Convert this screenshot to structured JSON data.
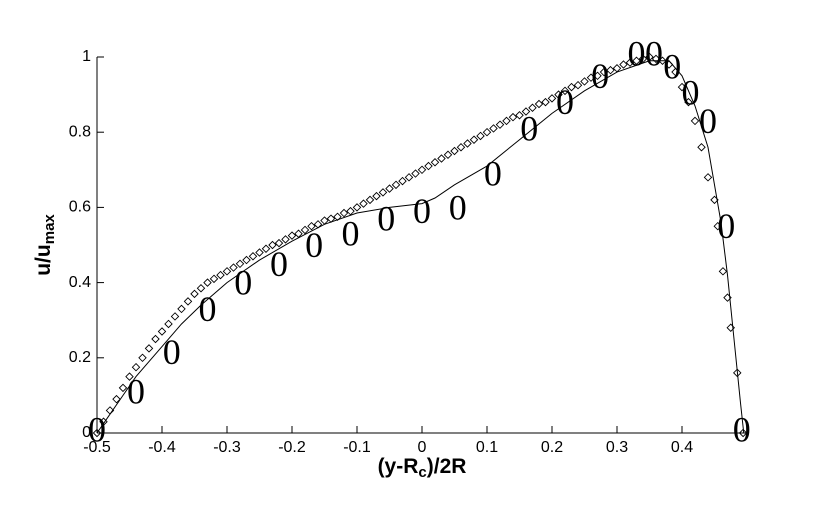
{
  "chart_data": {
    "type": "line",
    "xlabel": [
      "(y-R",
      "c",
      ")/2R"
    ],
    "ylabel": [
      "u/u",
      "max"
    ],
    "xlim": [
      -0.5,
      0.5
    ],
    "ylim": [
      0,
      1
    ],
    "xticks": [
      -0.5,
      -0.4,
      -0.3,
      -0.2,
      -0.1,
      0,
      0.1,
      0.2,
      0.3,
      0.4
    ],
    "yticks": [
      0,
      0.2,
      0.4,
      0.6,
      0.8,
      1
    ],
    "grid": false,
    "series": [
      {
        "mode": "line",
        "color": "#000000",
        "x": [
          -0.5,
          -0.48,
          -0.46,
          -0.44,
          -0.42,
          -0.4,
          -0.37,
          -0.34,
          -0.3,
          -0.25,
          -0.2,
          -0.15,
          -0.1,
          -0.05,
          0,
          0.02,
          0.05,
          0.1,
          0.15,
          0.2,
          0.25,
          0.3,
          0.35,
          0.38,
          0.4,
          0.42,
          0.44,
          0.46,
          0.47,
          0.48,
          0.49,
          0.495
        ],
        "values": [
          0,
          0.05,
          0.1,
          0.15,
          0.19,
          0.23,
          0.29,
          0.34,
          0.4,
          0.46,
          0.51,
          0.555,
          0.585,
          0.6,
          0.61,
          0.625,
          0.66,
          0.71,
          0.78,
          0.85,
          0.91,
          0.96,
          0.99,
          0.99,
          0.95,
          0.87,
          0.76,
          0.56,
          0.42,
          0.25,
          0.08,
          0
        ]
      },
      {
        "mode": "diamond",
        "color": "#000000",
        "x": [
          -0.5,
          -0.49,
          -0.48,
          -0.47,
          -0.46,
          -0.45,
          -0.44,
          -0.43,
          -0.42,
          -0.41,
          -0.4,
          -0.39,
          -0.38,
          -0.37,
          -0.36,
          -0.35,
          -0.34,
          -0.33,
          -0.32,
          -0.31,
          -0.3,
          -0.29,
          -0.28,
          -0.27,
          -0.26,
          -0.25,
          -0.24,
          -0.23,
          -0.22,
          -0.21,
          -0.2,
          -0.19,
          -0.18,
          -0.17,
          -0.16,
          -0.15,
          -0.14,
          -0.13,
          -0.12,
          -0.11,
          -0.1,
          -0.09,
          -0.08,
          -0.07,
          -0.06,
          -0.05,
          -0.04,
          -0.03,
          -0.02,
          -0.01,
          0,
          0.01,
          0.02,
          0.03,
          0.04,
          0.05,
          0.06,
          0.07,
          0.08,
          0.09,
          0.1,
          0.11,
          0.12,
          0.13,
          0.14,
          0.15,
          0.16,
          0.17,
          0.18,
          0.19,
          0.2,
          0.21,
          0.22,
          0.23,
          0.24,
          0.25,
          0.26,
          0.27,
          0.28,
          0.29,
          0.3,
          0.31,
          0.32,
          0.33,
          0.34,
          0.35,
          0.36,
          0.37,
          0.38,
          0.39,
          0.4,
          0.41,
          0.42,
          0.43,
          0.44,
          0.45,
          0.455,
          0.463,
          0.47,
          0.475,
          0.485,
          0.494
        ],
        "values": [
          0,
          0.03,
          0.06,
          0.09,
          0.12,
          0.15,
          0.175,
          0.2,
          0.225,
          0.25,
          0.27,
          0.29,
          0.31,
          0.33,
          0.35,
          0.37,
          0.385,
          0.4,
          0.41,
          0.42,
          0.43,
          0.44,
          0.45,
          0.46,
          0.47,
          0.48,
          0.49,
          0.5,
          0.505,
          0.515,
          0.525,
          0.53,
          0.54,
          0.55,
          0.555,
          0.565,
          0.57,
          0.575,
          0.585,
          0.59,
          0.6,
          0.61,
          0.62,
          0.63,
          0.64,
          0.65,
          0.66,
          0.67,
          0.68,
          0.69,
          0.7,
          0.71,
          0.72,
          0.73,
          0.74,
          0.75,
          0.76,
          0.77,
          0.78,
          0.79,
          0.8,
          0.81,
          0.82,
          0.83,
          0.84,
          0.845,
          0.855,
          0.865,
          0.875,
          0.88,
          0.89,
          0.9,
          0.91,
          0.92,
          0.925,
          0.935,
          0.945,
          0.95,
          0.96,
          0.965,
          0.97,
          0.98,
          0.985,
          0.99,
          0.995,
          1,
          0.995,
          0.99,
          0.98,
          0.96,
          0.92,
          0.88,
          0.83,
          0.76,
          0.68,
          0.62,
          0.55,
          0.43,
          0.36,
          0.28,
          0.16,
          0
        ]
      },
      {
        "mode": "glyph",
        "symbol": "0",
        "color": "#000000",
        "x": [
          -0.5,
          -0.44,
          -0.385,
          -0.33,
          -0.275,
          -0.22,
          -0.166,
          -0.11,
          -0.055,
          0,
          0.055,
          0.109,
          0.165,
          0.22,
          0.274,
          0.33,
          0.357,
          0.385,
          0.413,
          0.44,
          0.468,
          0.492
        ],
        "values": [
          0,
          0.1,
          0.205,
          0.32,
          0.39,
          0.44,
          0.49,
          0.52,
          0.56,
          0.58,
          0.59,
          0.68,
          0.8,
          0.87,
          0.94,
          1,
          1,
          0.965,
          0.895,
          0.82,
          0.54,
          0
        ]
      }
    ]
  }
}
